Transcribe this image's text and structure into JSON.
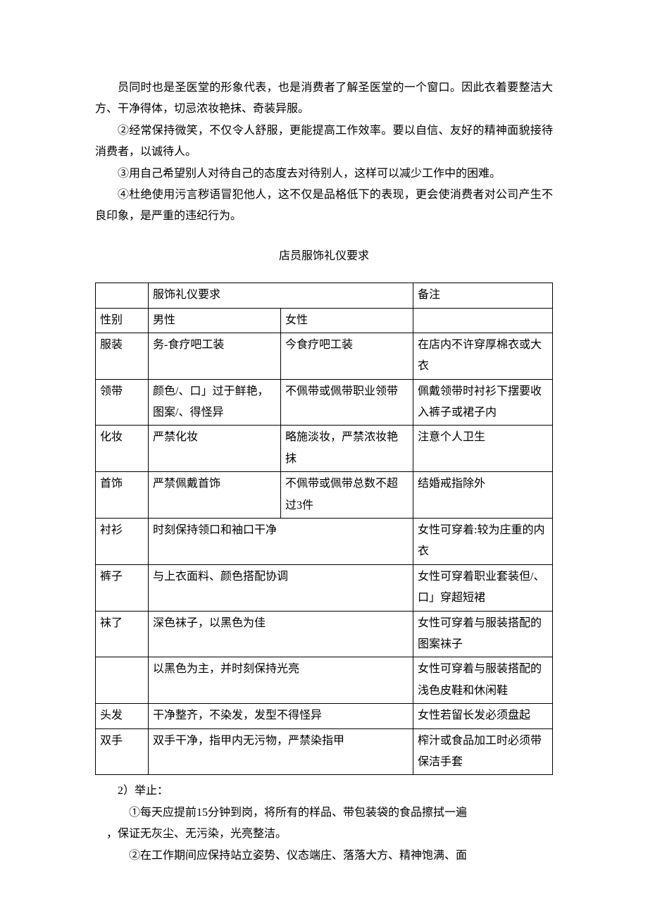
{
  "paragraphs": {
    "p1": "员同时也是圣医堂的形象代表，也是消费者了解圣医堂的一个窗口。因此衣着要整洁大方、干净得体，切忌浓妆艳抹、奇装异服。",
    "p2": "②经常保持微笑，不仅令人舒服，更能提高工作效率。要以自信、友好的精神面貌接待消费者，以诚待人。",
    "p3": "③用自己希望别人对待自己的态度去对待别人，这样可以减少工作中的困难。",
    "p4": "④杜绝使用污言秽语冒犯他人，这不仅是品格低下的表现，更会使消费者对公司产生不良印象，是严重的违纪行为。"
  },
  "section_title": "店员服饰礼仪要求",
  "table": {
    "header": {
      "req": "服饰礼仪要求",
      "note": "备注"
    },
    "gender_row": {
      "label": "性别",
      "male": "男性",
      "female": "女性"
    },
    "rows": [
      {
        "label": "服装",
        "male": "务-食疗吧工装",
        "female": "今食疗吧工装",
        "note": "在店内不许穿厚棉衣或大衣"
      },
      {
        "label": "领带",
        "male": "颜色/、口」过于鲜艳，图案/、得怪异",
        "female": "不佩带或佩带职业领带",
        "note": "佩戴领带时衬衫下摆要收入裤子或裙子内"
      },
      {
        "label": "化妆",
        "male": "严禁化妆",
        "female": "略施淡妆，严禁浓妆艳抹",
        "note": "注意个人卫生"
      },
      {
        "label": "首饰",
        "male": "严禁佩戴首饰",
        "female": "不佩带或佩带总数不超过3件",
        "note": "结婚戒指除外"
      }
    ],
    "span_rows": [
      {
        "label": "衬衫",
        "content": "时刻保持领口和袖口干净",
        "note": "女性可穿着:较为庄重的内衣"
      },
      {
        "label": "裤子",
        "content": "与上衣面料、颜色搭配协调",
        "note": "女性可穿着职业套装但/、口」穿超短裙"
      },
      {
        "label": "袜了",
        "content": "深色袜子，以黑色为佳",
        "note": "女性可穿着与服装搭配的图案袜子"
      },
      {
        "label": "",
        "content": "以黑色为主，并时刻保持光亮",
        "note": "女性可穿着与服装搭配的浅色皮鞋和休闲鞋"
      },
      {
        "label": "头发",
        "content": "干净整齐，不染发，发型不得怪异",
        "note": "女性若留长发必须盘起"
      },
      {
        "label": "双手",
        "content": "双手干净，指甲内无污物，严禁染指甲",
        "note": "榨汁或食品加工时必须带保洁手套"
      }
    ]
  },
  "after": {
    "sec2_label": "2）举止：",
    "item1": "①每天应提前15分钟到岗，将所有的样品、带包装袋的食品擦拭一遍",
    "item1_cont": "，保证无灰尘、无污染，光亮整洁。",
    "item2": "②在工作期间应保持站立姿势、仪态端庄、落落大方、精神饱满、面"
  }
}
